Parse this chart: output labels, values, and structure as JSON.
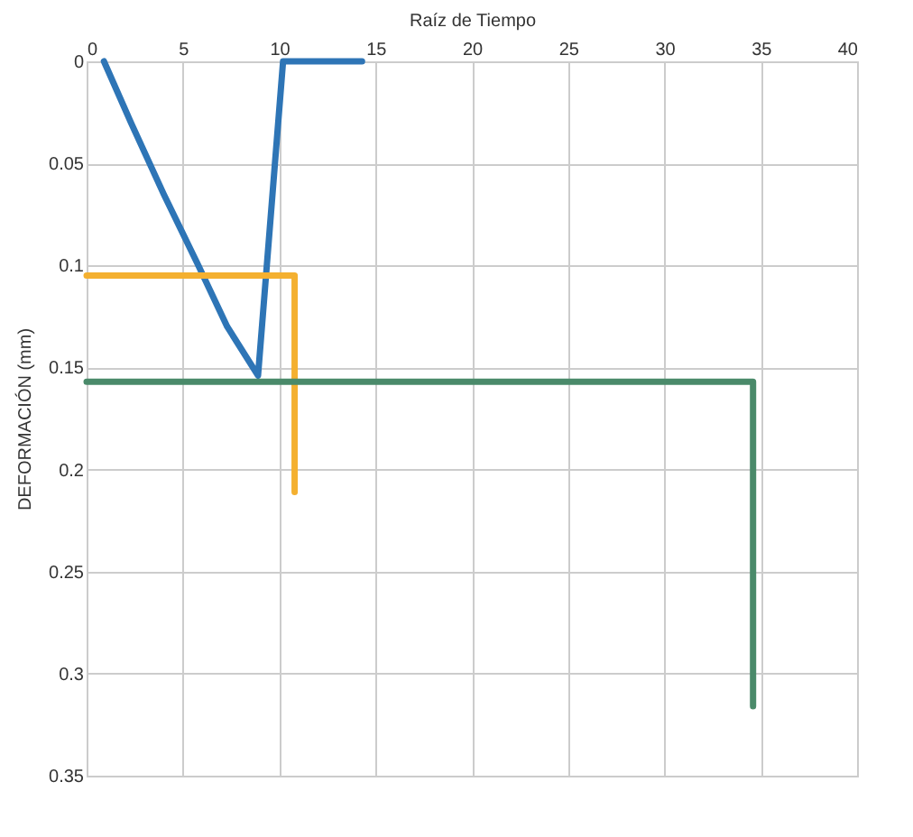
{
  "chart_data": {
    "type": "line",
    "xlabel": "Raíz de Tiempo",
    "ylabel": "DEFORMACIÓN (mm)",
    "xlim": [
      0,
      40
    ],
    "xticks": [
      0,
      5,
      10,
      15,
      20,
      25,
      30,
      35,
      40
    ],
    "ylim": [
      0.35,
      0
    ],
    "yticks": [
      0,
      0.05,
      0.1,
      0.15,
      0.2,
      0.25,
      0.3,
      0.35
    ],
    "grid": true,
    "marker": "none",
    "line_style": "solid",
    "series": [
      {
        "color": "#2e75b6",
        "x": [
          0.9,
          2.3,
          4.0,
          5.8,
          7.3,
          8.9,
          10.2,
          14.3
        ],
        "values": [
          0,
          0.03,
          0.065,
          0.1,
          0.13,
          0.154,
          0,
          0
        ]
      },
      {
        "color": "#f4b030",
        "x": [
          0,
          10.8,
          10.8
        ],
        "values": [
          0.105,
          0.105,
          0.211
        ]
      },
      {
        "color": "#4a8a6a",
        "x": [
          0,
          34.6,
          34.6
        ],
        "values": [
          0.157,
          0.157,
          0.316
        ]
      }
    ]
  }
}
